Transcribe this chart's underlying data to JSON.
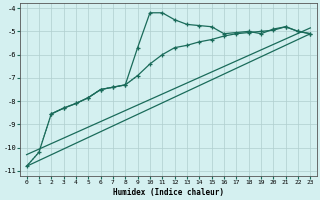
{
  "xlabel": "Humidex (Indice chaleur)",
  "bg_color": "#d4f0f0",
  "grid_color": "#b0cece",
  "line_color": "#1a6b5a",
  "xlim": [
    -0.5,
    23.5
  ],
  "ylim": [
    -11.2,
    -3.8
  ],
  "xticks": [
    0,
    1,
    2,
    3,
    4,
    5,
    6,
    7,
    8,
    9,
    10,
    11,
    12,
    13,
    14,
    15,
    16,
    17,
    18,
    19,
    20,
    21,
    22,
    23
  ],
  "yticks": [
    -11,
    -10,
    -9,
    -8,
    -7,
    -6,
    -5,
    -4
  ],
  "line1_x": [
    0,
    1,
    2,
    3,
    4,
    5,
    6,
    7,
    8,
    9,
    10,
    11,
    12,
    13,
    14,
    15,
    16,
    17,
    18,
    19,
    20,
    21,
    22,
    23
  ],
  "line1_y": [
    -10.8,
    -10.2,
    -8.55,
    -8.3,
    -8.1,
    -7.85,
    -7.5,
    -7.4,
    -7.3,
    -5.7,
    -4.2,
    -4.2,
    -4.5,
    -4.7,
    -4.75,
    -4.8,
    -5.1,
    -5.05,
    -5.0,
    -5.1,
    -4.9,
    -4.8,
    -5.0,
    -5.1
  ],
  "line2_x": [
    2,
    3,
    4,
    5,
    6,
    7,
    8,
    9,
    10,
    11,
    12,
    13,
    14,
    15,
    16,
    17,
    18,
    19,
    20,
    21,
    22,
    23
  ],
  "line2_y": [
    -8.55,
    -8.3,
    -8.1,
    -7.85,
    -7.5,
    -7.4,
    -7.3,
    -6.9,
    -6.4,
    -6.0,
    -5.7,
    -5.6,
    -5.45,
    -5.35,
    -5.2,
    -5.1,
    -5.05,
    -5.0,
    -4.95,
    -4.8,
    -5.0,
    -5.1
  ],
  "line3_x": [
    0,
    23
  ],
  "line3_y": [
    -10.8,
    -5.1
  ],
  "line4_x": [
    0,
    23
  ],
  "line4_y": [
    -10.3,
    -4.85
  ],
  "line5_x": [
    0,
    1,
    2,
    3,
    4,
    5,
    6,
    7,
    8,
    9
  ],
  "line5_y": [
    -10.8,
    -10.2,
    -8.55,
    -8.3,
    -8.1,
    -7.85,
    -7.5,
    -7.4,
    -7.3,
    -6.9
  ]
}
